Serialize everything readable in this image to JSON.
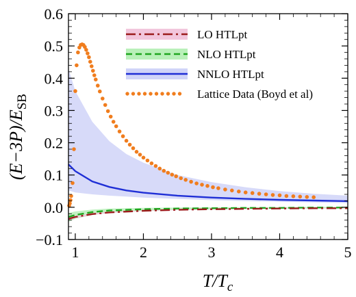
{
  "chart_data": {
    "type": "line",
    "title": "",
    "xlabel": "T/T",
    "xlabel_sub": "c",
    "ylabel": "(E−3P)/E",
    "ylabel_sub": "SB",
    "xlim": [
      0.9,
      5.0
    ],
    "ylim": [
      -0.1,
      0.6
    ],
    "x_ticks": [
      1,
      2,
      3,
      4,
      5
    ],
    "y_ticks": [
      -0.1,
      0.0,
      0.1,
      0.2,
      0.3,
      0.4,
      0.5,
      0.6
    ],
    "y_tick_labels": [
      "−0.1",
      "0.0",
      "0.1",
      "0.2",
      "0.3",
      "0.4",
      "0.5",
      "0.6"
    ],
    "legend_position": "top-right",
    "legend": [
      {
        "label": "LO HTLpt",
        "color": "#9b1b1b",
        "band": "#f2c6dc",
        "style": "dash-dot"
      },
      {
        "label": "NLO HTLpt",
        "color": "#1ea51e",
        "band": "#b9f0b9",
        "style": "dashed"
      },
      {
        "label": "NNLO HTLpt",
        "color": "#1f2fd6",
        "band": "#d0d4f8",
        "style": "solid"
      },
      {
        "label": "Lattice Data (Boyd et al)",
        "color": "#f07d1e",
        "style": "dots"
      }
    ],
    "series": [
      {
        "name": "LO HTLpt",
        "kind": "band-line",
        "x": [
          0.9,
          1.0,
          1.25,
          1.5,
          2.0,
          2.5,
          3.0,
          3.5,
          4.0,
          4.5,
          5.0
        ],
        "y": [
          -0.036,
          -0.03,
          -0.021,
          -0.016,
          -0.011,
          -0.008,
          -0.006,
          -0.005,
          -0.004,
          -0.003,
          -0.003
        ],
        "lower": [
          -0.04,
          -0.034,
          -0.024,
          -0.018,
          -0.012,
          -0.009,
          -0.007,
          -0.006,
          -0.005,
          -0.004,
          -0.004
        ],
        "upper": [
          -0.032,
          -0.027,
          -0.019,
          -0.014,
          -0.01,
          -0.007,
          -0.005,
          -0.004,
          -0.003,
          -0.002,
          -0.002
        ]
      },
      {
        "name": "NLO HTLpt",
        "kind": "band-line",
        "x": [
          0.9,
          1.0,
          1.25,
          1.5,
          2.0,
          2.5,
          3.0,
          3.5,
          4.0,
          4.5,
          5.0
        ],
        "y": [
          -0.03,
          -0.024,
          -0.015,
          -0.01,
          -0.006,
          -0.004,
          -0.003,
          -0.002,
          -0.002,
          -0.001,
          -0.001
        ],
        "lower": [
          -0.045,
          -0.036,
          -0.024,
          -0.017,
          -0.011,
          -0.008,
          -0.006,
          -0.005,
          -0.004,
          -0.003,
          -0.003
        ],
        "upper": [
          -0.018,
          -0.013,
          -0.007,
          -0.004,
          -0.002,
          -0.001,
          0.0,
          0.0,
          0.0,
          0.001,
          0.001
        ]
      },
      {
        "name": "NNLO HTLpt",
        "kind": "band-line",
        "x": [
          0.9,
          1.0,
          1.25,
          1.5,
          1.75,
          2.0,
          2.5,
          3.0,
          3.5,
          4.0,
          4.5,
          5.0
        ],
        "y": [
          0.133,
          0.112,
          0.08,
          0.063,
          0.052,
          0.045,
          0.036,
          0.03,
          0.026,
          0.023,
          0.021,
          0.019
        ],
        "lower": [
          0.052,
          0.046,
          0.04,
          0.036,
          0.033,
          0.03,
          0.026,
          0.022,
          0.019,
          0.017,
          0.015,
          0.013
        ],
        "upper": [
          0.43,
          0.36,
          0.265,
          0.205,
          0.165,
          0.138,
          0.1,
          0.078,
          0.062,
          0.05,
          0.042,
          0.036
        ]
      },
      {
        "name": "Lattice Data (Boyd et al)",
        "kind": "scatter",
        "x": [
          0.91,
          0.92,
          0.93,
          0.94,
          0.96,
          0.98,
          1.0,
          1.02,
          1.04,
          1.06,
          1.08,
          1.1,
          1.12,
          1.14,
          1.16,
          1.18,
          1.2,
          1.22,
          1.24,
          1.26,
          1.28,
          1.3,
          1.33,
          1.36,
          1.4,
          1.44,
          1.48,
          1.52,
          1.56,
          1.6,
          1.65,
          1.7,
          1.75,
          1.8,
          1.85,
          1.9,
          1.95,
          2.0,
          2.06,
          2.12,
          2.18,
          2.24,
          2.3,
          2.36,
          2.42,
          2.48,
          2.55,
          2.62,
          2.7,
          2.78,
          2.86,
          2.94,
          3.02,
          3.1,
          3.2,
          3.3,
          3.4,
          3.5,
          3.6,
          3.7,
          3.8,
          3.9,
          4.0,
          4.1,
          4.2,
          4.3,
          4.4,
          4.5
        ],
        "y": [
          0.005,
          0.012,
          0.022,
          0.035,
          0.075,
          0.18,
          0.36,
          0.44,
          0.48,
          0.495,
          0.503,
          0.505,
          0.503,
          0.497,
          0.488,
          0.477,
          0.465,
          0.451,
          0.437,
          0.423,
          0.409,
          0.396,
          0.377,
          0.359,
          0.337,
          0.317,
          0.298,
          0.281,
          0.265,
          0.251,
          0.235,
          0.22,
          0.206,
          0.194,
          0.183,
          0.172,
          0.163,
          0.154,
          0.145,
          0.136,
          0.128,
          0.12,
          0.113,
          0.107,
          0.101,
          0.096,
          0.09,
          0.085,
          0.079,
          0.074,
          0.07,
          0.066,
          0.062,
          0.059,
          0.055,
          0.052,
          0.049,
          0.046,
          0.044,
          0.042,
          0.04,
          0.038,
          0.037,
          0.035,
          0.034,
          0.033,
          0.032,
          0.031
        ]
      }
    ]
  }
}
